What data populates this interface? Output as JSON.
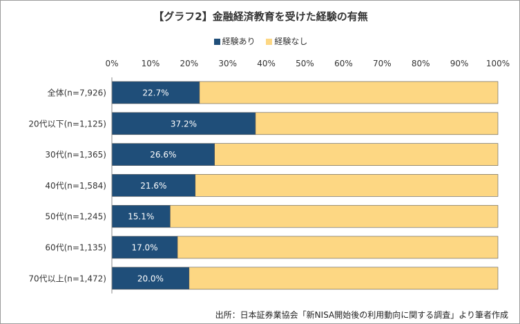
{
  "chart_data": {
    "type": "bar",
    "orientation": "horizontal",
    "stacked": "percent",
    "title": "【グラフ2】金融経済教育を受けた経験の有無",
    "categories": [
      "全体(n=7,926)",
      "20代以下(n=1,125)",
      "30代(n=1,365)",
      "40代(n=1,584)",
      "50代(n=1,245)",
      "60代(n=1,135)",
      "70代以上(n=1,472)"
    ],
    "series": [
      {
        "name": "経験あり",
        "color": "#1f4e79",
        "values": [
          22.7,
          37.2,
          26.6,
          21.6,
          15.1,
          17.0,
          20.0
        ],
        "labels": [
          "22.7%",
          "37.2%",
          "26.6%",
          "21.6%",
          "15.1%",
          "17.0%",
          "20.0%"
        ]
      },
      {
        "name": "経験なし",
        "color": "#fdd783",
        "values": [
          77.3,
          62.8,
          73.4,
          78.4,
          84.9,
          83.0,
          80.0
        ]
      }
    ],
    "xlim": [
      0,
      100
    ],
    "xticks": [
      "0%",
      "10%",
      "20%",
      "30%",
      "40%",
      "50%",
      "60%",
      "70%",
      "80%",
      "90%",
      "100%"
    ],
    "legend_position": "top-center",
    "axis_position": "top",
    "grid": false
  },
  "source": "出所：日本証券業協会「新NISA開始後の利用動向に関する調査」より筆者作成"
}
